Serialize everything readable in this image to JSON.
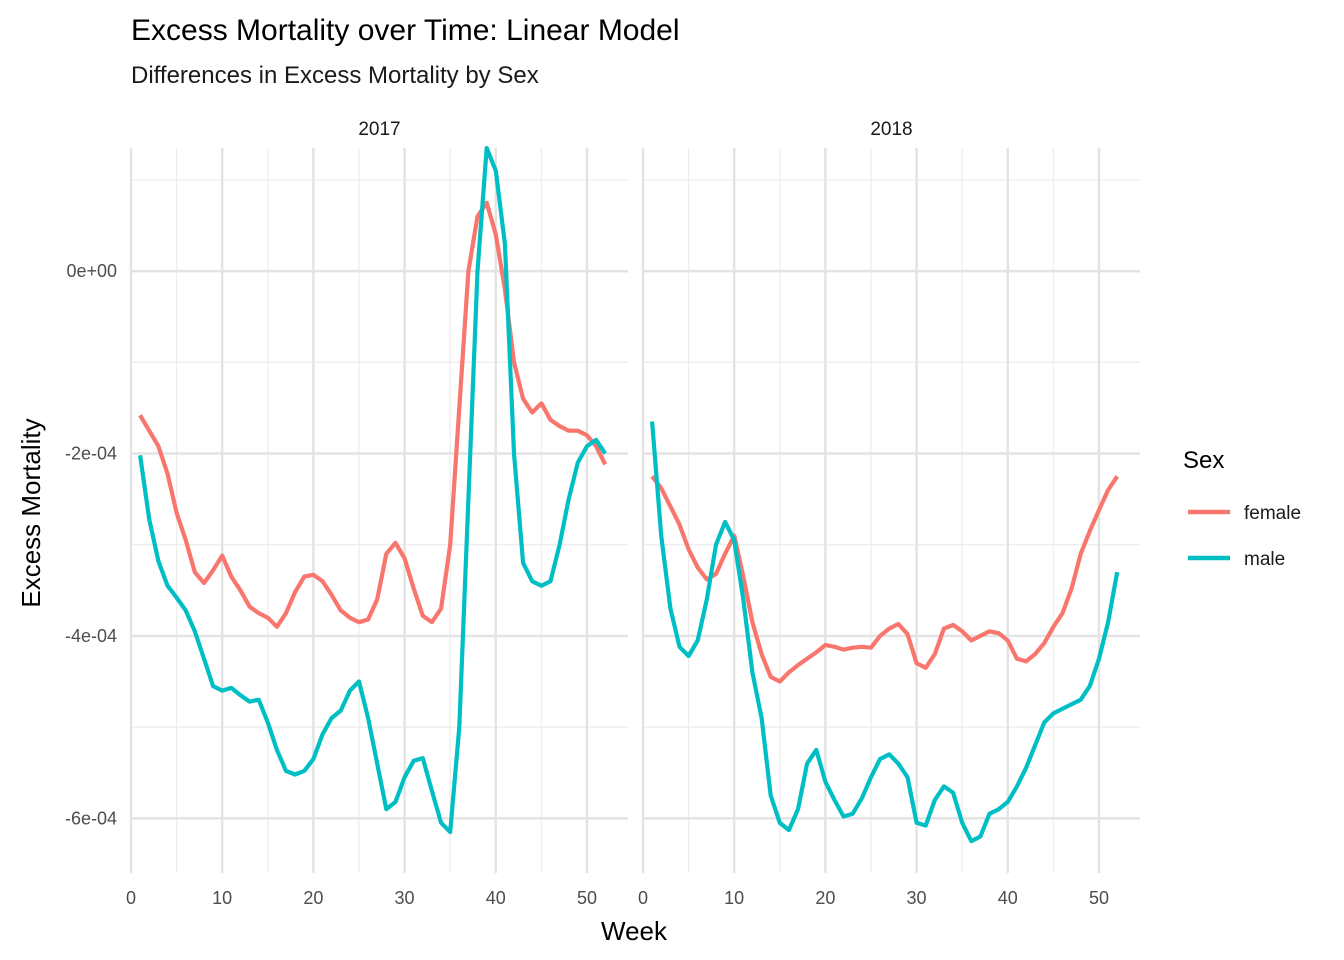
{
  "title": "Excess Mortality over Time: Linear Model",
  "subtitle": "Differences in Excess Mortality by Sex",
  "chart_data": {
    "type": "line",
    "title": "Excess Mortality over Time: Linear Model",
    "subtitle": "Differences in Excess Mortality by Sex",
    "xlabel": "Week",
    "ylabel": "Excess Mortality",
    "xlim": [
      0,
      54.5
    ],
    "ylim": [
      -0.00066,
      0.000135
    ],
    "x_ticks": [
      0,
      10,
      20,
      30,
      40,
      50
    ],
    "x_tick_labels": [
      "0",
      "10",
      "20",
      "30",
      "40",
      "50"
    ],
    "y_ticks": [
      0,
      -0.0002,
      -0.0004,
      -0.0006
    ],
    "y_tick_labels": [
      "0e+00",
      "-2e-04",
      "-4e-04",
      "-6e-04"
    ],
    "grid": true,
    "legend": {
      "title": "Sex",
      "position": "right",
      "entries": [
        {
          "label": "female",
          "color": "#F8766D"
        },
        {
          "label": "male",
          "color": "#00BFC4"
        }
      ]
    },
    "panels": [
      {
        "label": "2017",
        "series": [
          {
            "name": "female",
            "color": "#F8766D",
            "x": [
              1,
              2,
              3,
              4,
              5,
              6,
              7,
              8,
              9,
              10,
              11,
              12,
              13,
              14,
              15,
              16,
              17,
              18,
              19,
              20,
              21,
              22,
              23,
              24,
              25,
              26,
              27,
              28,
              29,
              30,
              31,
              32,
              33,
              34,
              35,
              36,
              37,
              38,
              39,
              40,
              41,
              42,
              43,
              44,
              45,
              46,
              47,
              48,
              49,
              50,
              51,
              52
            ],
            "y": [
              -0.000158,
              -0.000175,
              -0.000192,
              -0.000222,
              -0.000265,
              -0.000295,
              -0.00033,
              -0.000342,
              -0.000328,
              -0.000312,
              -0.000335,
              -0.00035,
              -0.000368,
              -0.000375,
              -0.00038,
              -0.00039,
              -0.000375,
              -0.000352,
              -0.000335,
              -0.000333,
              -0.00034,
              -0.000355,
              -0.000372,
              -0.00038,
              -0.000385,
              -0.000382,
              -0.00036,
              -0.00031,
              -0.000298,
              -0.000315,
              -0.000348,
              -0.000378,
              -0.000385,
              -0.00037,
              -0.0003,
              -0.00015,
              0.0,
              6e-05,
              7.5e-05,
              4e-05,
              -2e-05,
              -0.0001,
              -0.00014,
              -0.000155,
              -0.000145,
              -0.000163,
              -0.00017,
              -0.000175,
              -0.000175,
              -0.00018,
              -0.000192,
              -0.000212
            ]
          },
          {
            "name": "male",
            "color": "#00BFC4",
            "x": [
              1,
              2,
              3,
              4,
              5,
              6,
              7,
              8,
              9,
              10,
              11,
              12,
              13,
              14,
              15,
              16,
              17,
              18,
              19,
              20,
              21,
              22,
              23,
              24,
              25,
              26,
              27,
              28,
              29,
              30,
              31,
              32,
              33,
              34,
              35,
              36,
              37,
              38,
              39,
              40,
              41,
              42,
              43,
              44,
              45,
              46,
              47,
              48,
              49,
              50,
              51,
              52
            ],
            "y": [
              -0.000202,
              -0.000272,
              -0.000318,
              -0.000345,
              -0.000358,
              -0.000372,
              -0.000395,
              -0.000425,
              -0.000455,
              -0.00046,
              -0.000457,
              -0.000465,
              -0.000472,
              -0.00047,
              -0.000495,
              -0.000525,
              -0.000548,
              -0.000552,
              -0.000548,
              -0.000535,
              -0.000508,
              -0.00049,
              -0.000482,
              -0.00046,
              -0.00045,
              -0.00049,
              -0.00054,
              -0.00059,
              -0.000582,
              -0.000555,
              -0.000537,
              -0.000534,
              -0.00057,
              -0.000605,
              -0.000615,
              -0.0005,
              -0.00025,
              0.0,
              0.000135,
              0.00011,
              3e-05,
              -0.0002,
              -0.00032,
              -0.00034,
              -0.000345,
              -0.00034,
              -0.0003,
              -0.00025,
              -0.00021,
              -0.000192,
              -0.000185,
              -0.0002
            ]
          }
        ]
      },
      {
        "label": "2018",
        "series": [
          {
            "name": "female",
            "color": "#F8766D",
            "x": [
              1,
              2,
              3,
              4,
              5,
              6,
              7,
              8,
              9,
              10,
              11,
              12,
              13,
              14,
              15,
              16,
              17,
              18,
              19,
              20,
              21,
              22,
              23,
              24,
              25,
              26,
              27,
              28,
              29,
              30,
              31,
              32,
              33,
              34,
              35,
              36,
              37,
              38,
              39,
              40,
              41,
              42,
              43,
              44,
              45,
              46,
              47,
              48,
              49,
              50,
              51,
              52
            ],
            "y": [
              -0.000225,
              -0.000238,
              -0.000258,
              -0.000278,
              -0.000305,
              -0.000325,
              -0.000338,
              -0.000332,
              -0.00031,
              -0.00029,
              -0.000335,
              -0.000385,
              -0.00042,
              -0.000445,
              -0.00045,
              -0.00044,
              -0.000432,
              -0.000425,
              -0.000418,
              -0.00041,
              -0.000412,
              -0.000415,
              -0.000413,
              -0.000412,
              -0.000413,
              -0.0004,
              -0.000392,
              -0.000387,
              -0.000398,
              -0.00043,
              -0.000435,
              -0.00042,
              -0.000392,
              -0.000388,
              -0.000395,
              -0.000405,
              -0.0004,
              -0.000395,
              -0.000397,
              -0.000405,
              -0.000425,
              -0.000428,
              -0.00042,
              -0.000408,
              -0.00039,
              -0.000375,
              -0.000348,
              -0.00031,
              -0.000285,
              -0.000262,
              -0.00024,
              -0.000225
            ]
          },
          {
            "name": "male",
            "color": "#00BFC4",
            "x": [
              1,
              2,
              3,
              4,
              5,
              6,
              7,
              8,
              9,
              10,
              11,
              12,
              13,
              14,
              15,
              16,
              17,
              18,
              19,
              20,
              21,
              22,
              23,
              24,
              25,
              26,
              27,
              28,
              29,
              30,
              31,
              32,
              33,
              34,
              35,
              36,
              37,
              38,
              39,
              40,
              41,
              42,
              43,
              44,
              45,
              46,
              47,
              48,
              49,
              50,
              51,
              52
            ],
            "y": [
              -0.000165,
              -0.00029,
              -0.00037,
              -0.000412,
              -0.000422,
              -0.000405,
              -0.00036,
              -0.0003,
              -0.000275,
              -0.000295,
              -0.00036,
              -0.00044,
              -0.00049,
              -0.000575,
              -0.000605,
              -0.000613,
              -0.00059,
              -0.00054,
              -0.000525,
              -0.00056,
              -0.00058,
              -0.000598,
              -0.000595,
              -0.000578,
              -0.000555,
              -0.000535,
              -0.00053,
              -0.00054,
              -0.000555,
              -0.000605,
              -0.000608,
              -0.00058,
              -0.000565,
              -0.000572,
              -0.000605,
              -0.000625,
              -0.00062,
              -0.000595,
              -0.00059,
              -0.000582,
              -0.000565,
              -0.000545,
              -0.00052,
              -0.000495,
              -0.000485,
              -0.00048,
              -0.000475,
              -0.00047,
              -0.000455,
              -0.000425,
              -0.000385,
              -0.00033
            ]
          }
        ]
      }
    ]
  }
}
